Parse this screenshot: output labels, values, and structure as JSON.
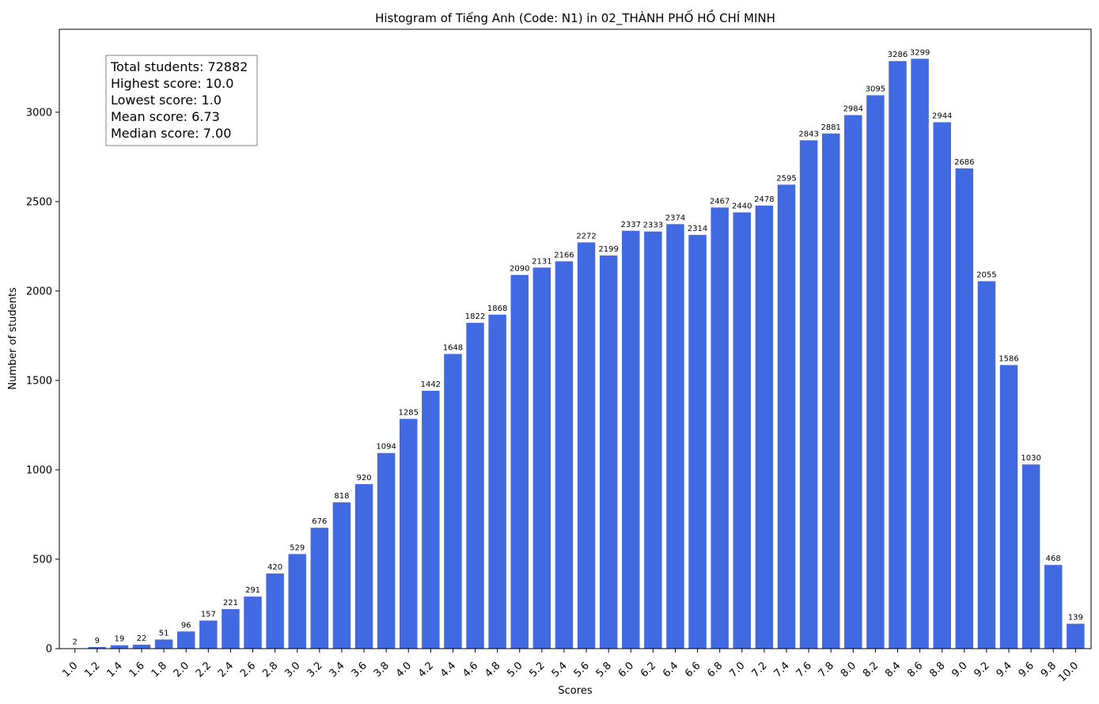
{
  "chart_data": {
    "type": "bar",
    "title": "Histogram of Tiếng Anh (Code: N1) in 02_THÀNH PHỐ HỒ CHÍ MINH",
    "xlabel": "Scores",
    "ylabel": "Number of students",
    "categories": [
      "1.0",
      "1.2",
      "1.4",
      "1.6",
      "1.8",
      "2.0",
      "2.2",
      "2.4",
      "2.6",
      "2.8",
      "3.0",
      "3.2",
      "3.4",
      "3.6",
      "3.8",
      "4.0",
      "4.2",
      "4.4",
      "4.6",
      "4.8",
      "5.0",
      "5.2",
      "5.4",
      "5.6",
      "5.8",
      "6.0",
      "6.2",
      "6.4",
      "6.6",
      "6.8",
      "7.0",
      "7.2",
      "7.4",
      "7.6",
      "7.8",
      "8.0",
      "8.2",
      "8.4",
      "8.6",
      "8.8",
      "9.0",
      "9.2",
      "9.4",
      "9.6",
      "9.8",
      "10.0"
    ],
    "values": [
      2,
      9,
      19,
      22,
      51,
      96,
      157,
      221,
      291,
      420,
      529,
      676,
      818,
      920,
      1094,
      1285,
      1442,
      1648,
      1822,
      1868,
      2090,
      2131,
      2166,
      2272,
      2199,
      2337,
      2333,
      2374,
      2314,
      2467,
      2440,
      2478,
      2595,
      2843,
      2881,
      2984,
      3095,
      3286,
      3299,
      2944,
      2686,
      2055,
      1586,
      1030,
      468,
      139
    ],
    "yticks": [
      0,
      500,
      1000,
      1500,
      2000,
      2500,
      3000
    ],
    "ylim": [
      0,
      3464
    ],
    "bar_color": "#4169e1",
    "grid": false,
    "stats": [
      "Total students: 72882",
      "Highest score: 10.0",
      "Lowest score: 1.0",
      "Mean score: 6.73",
      "Median score: 7.00"
    ],
    "stats_placement": "top-left"
  }
}
